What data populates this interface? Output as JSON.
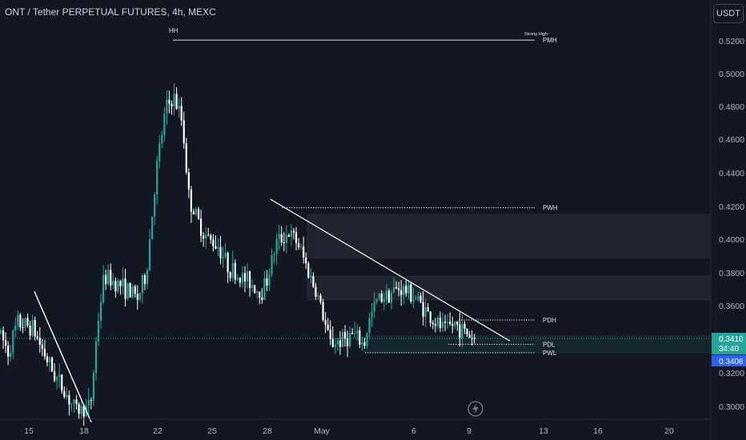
{
  "header": {
    "title": "ONT / Tether PERPETUAL FUTURES, 4h, MEXC",
    "currency_button": "USDT"
  },
  "chart_data": {
    "type": "candlestick",
    "y_ticks": [
      "0.5200",
      "0.5000",
      "0.4800",
      "0.4600",
      "0.4400",
      "0.4200",
      "0.4000",
      "0.3800",
      "0.3600",
      "0.3200",
      "0.3000"
    ],
    "x_ticks": [
      "15",
      "18",
      "22",
      "25",
      "28",
      "May",
      "6",
      "9",
      "13",
      "16",
      "20"
    ],
    "last_price": "0.3410",
    "countdown": "34:40",
    "bid_price": "0.3406",
    "levels": [
      {
        "label": "PMH",
        "value": 0.519
      },
      {
        "label": "PWH",
        "value": 0.419
      },
      {
        "label": "PDH",
        "value": 0.352
      },
      {
        "label": "PDL",
        "value": 0.3375
      },
      {
        "label": "PWL",
        "value": 0.3325
      }
    ],
    "annotations": [
      "HH",
      "Strong High"
    ],
    "zones": [
      {
        "top": 0.415,
        "bottom": 0.389
      },
      {
        "top": 0.378,
        "bottom": 0.364
      },
      {
        "top": 0.3425,
        "bottom": 0.3325
      }
    ],
    "trendlines": [
      {
        "from": [
          "15",
          0.369
        ],
        "to": [
          "18",
          0.291
        ]
      },
      {
        "from": [
          "28",
          0.424
        ],
        "to": [
          "10",
          0.3395
        ]
      }
    ],
    "colors": {
      "up": "#26a69a",
      "down": "#ffffff",
      "background": "#131722",
      "last_price": "#2962ff"
    }
  }
}
